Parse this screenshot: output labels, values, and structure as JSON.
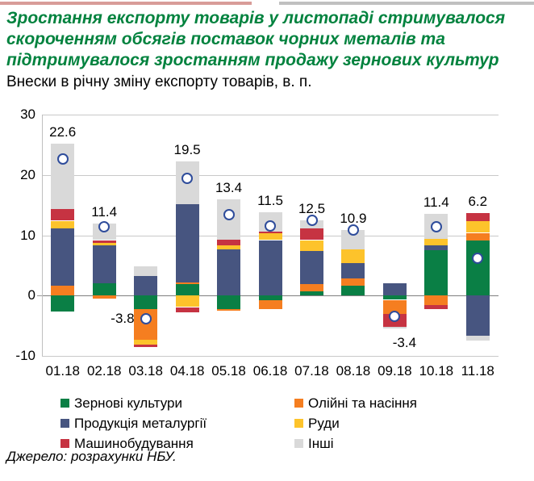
{
  "page": {
    "top_strip_left_color": "#d89c98",
    "top_strip_right_color": "#c0c0c0"
  },
  "header": {
    "title_lines": [
      "Зростання експорту товарів у листопаді стримувалося",
      "скороченням обсягів поставок чорних металів та",
      "підтримувалося зростанням продажу зернових культур"
    ],
    "title_color": "#00823e",
    "subtitle": "Внески в річну зміну експорту товарів, в. п."
  },
  "chart_data": {
    "type": "bar",
    "subtype": "stacked-bar-with-total-markers",
    "title": "Внески в річну зміну експорту товарів, в. п.",
    "categories": [
      "01.18",
      "02.18",
      "03.18",
      "04.18",
      "05.18",
      "06.18",
      "07.18",
      "08.18",
      "09.18",
      "10.18",
      "11.18"
    ],
    "totals": [
      22.6,
      11.4,
      -3.8,
      19.5,
      13.4,
      11.5,
      12.5,
      10.9,
      -3.4,
      11.4,
      6.2
    ],
    "total_labels": [
      "22.6",
      "11.4",
      "-3.8",
      "19.5",
      "13.4",
      "11.5",
      "12.5",
      "10.9",
      "-3.4",
      "11.4",
      "6.2"
    ],
    "total_label_placement": [
      "above",
      "above",
      "left_of_marker",
      "above",
      "above",
      "above",
      "above",
      "above",
      "below_bar",
      "above",
      "above"
    ],
    "series": [
      {
        "name": "Зернові культури",
        "color": "#0a7f45",
        "values": [
          -2.6,
          2.0,
          -2.2,
          1.9,
          -2.3,
          -0.8,
          0.7,
          1.7,
          -0.7,
          7.6,
          9.2
        ]
      },
      {
        "name": "Олійні та насіння",
        "color": "#f57e20",
        "values": [
          1.6,
          -0.5,
          -5.1,
          0.3,
          -0.2,
          -1.5,
          1.2,
          1.2,
          -2.35,
          -1.6,
          1.2
        ]
      },
      {
        "name": "Продукція металургії",
        "color": "#475580",
        "values": [
          9.5,
          6.3,
          3.3,
          13.0,
          7.7,
          9.2,
          5.5,
          2.5,
          2.0,
          0.8,
          -6.7
        ]
      },
      {
        "name": "Руди",
        "color": "#fdc32b",
        "values": [
          1.3,
          0.5,
          -0.8,
          -1.9,
          0.6,
          1.1,
          1.8,
          2.2,
          0.0,
          1.0,
          1.9
        ]
      },
      {
        "name": "Машинобудування",
        "color": "#c63342",
        "values": [
          2.0,
          0.4,
          -0.5,
          -0.8,
          1.0,
          0.3,
          1.9,
          0.0,
          -2.1,
          -0.6,
          1.4
        ]
      },
      {
        "name": "Інші",
        "color": "#d9d9d9",
        "values": [
          10.8,
          2.7,
          1.5,
          7.0,
          6.6,
          3.2,
          1.4,
          3.3,
          -0.25,
          4.2,
          -0.8
        ]
      }
    ],
    "marker_style": {
      "fill": "#ffffff",
      "ring": "#2e4c9b"
    },
    "ylim": [
      -10,
      30
    ],
    "yticks": [
      30,
      20,
      10,
      0,
      -10
    ],
    "grid": "horizontal",
    "legend_position": "bottom-two-columns",
    "units": "percentage points (в. п.)"
  },
  "source": "Джерело: розрахунки НБУ."
}
